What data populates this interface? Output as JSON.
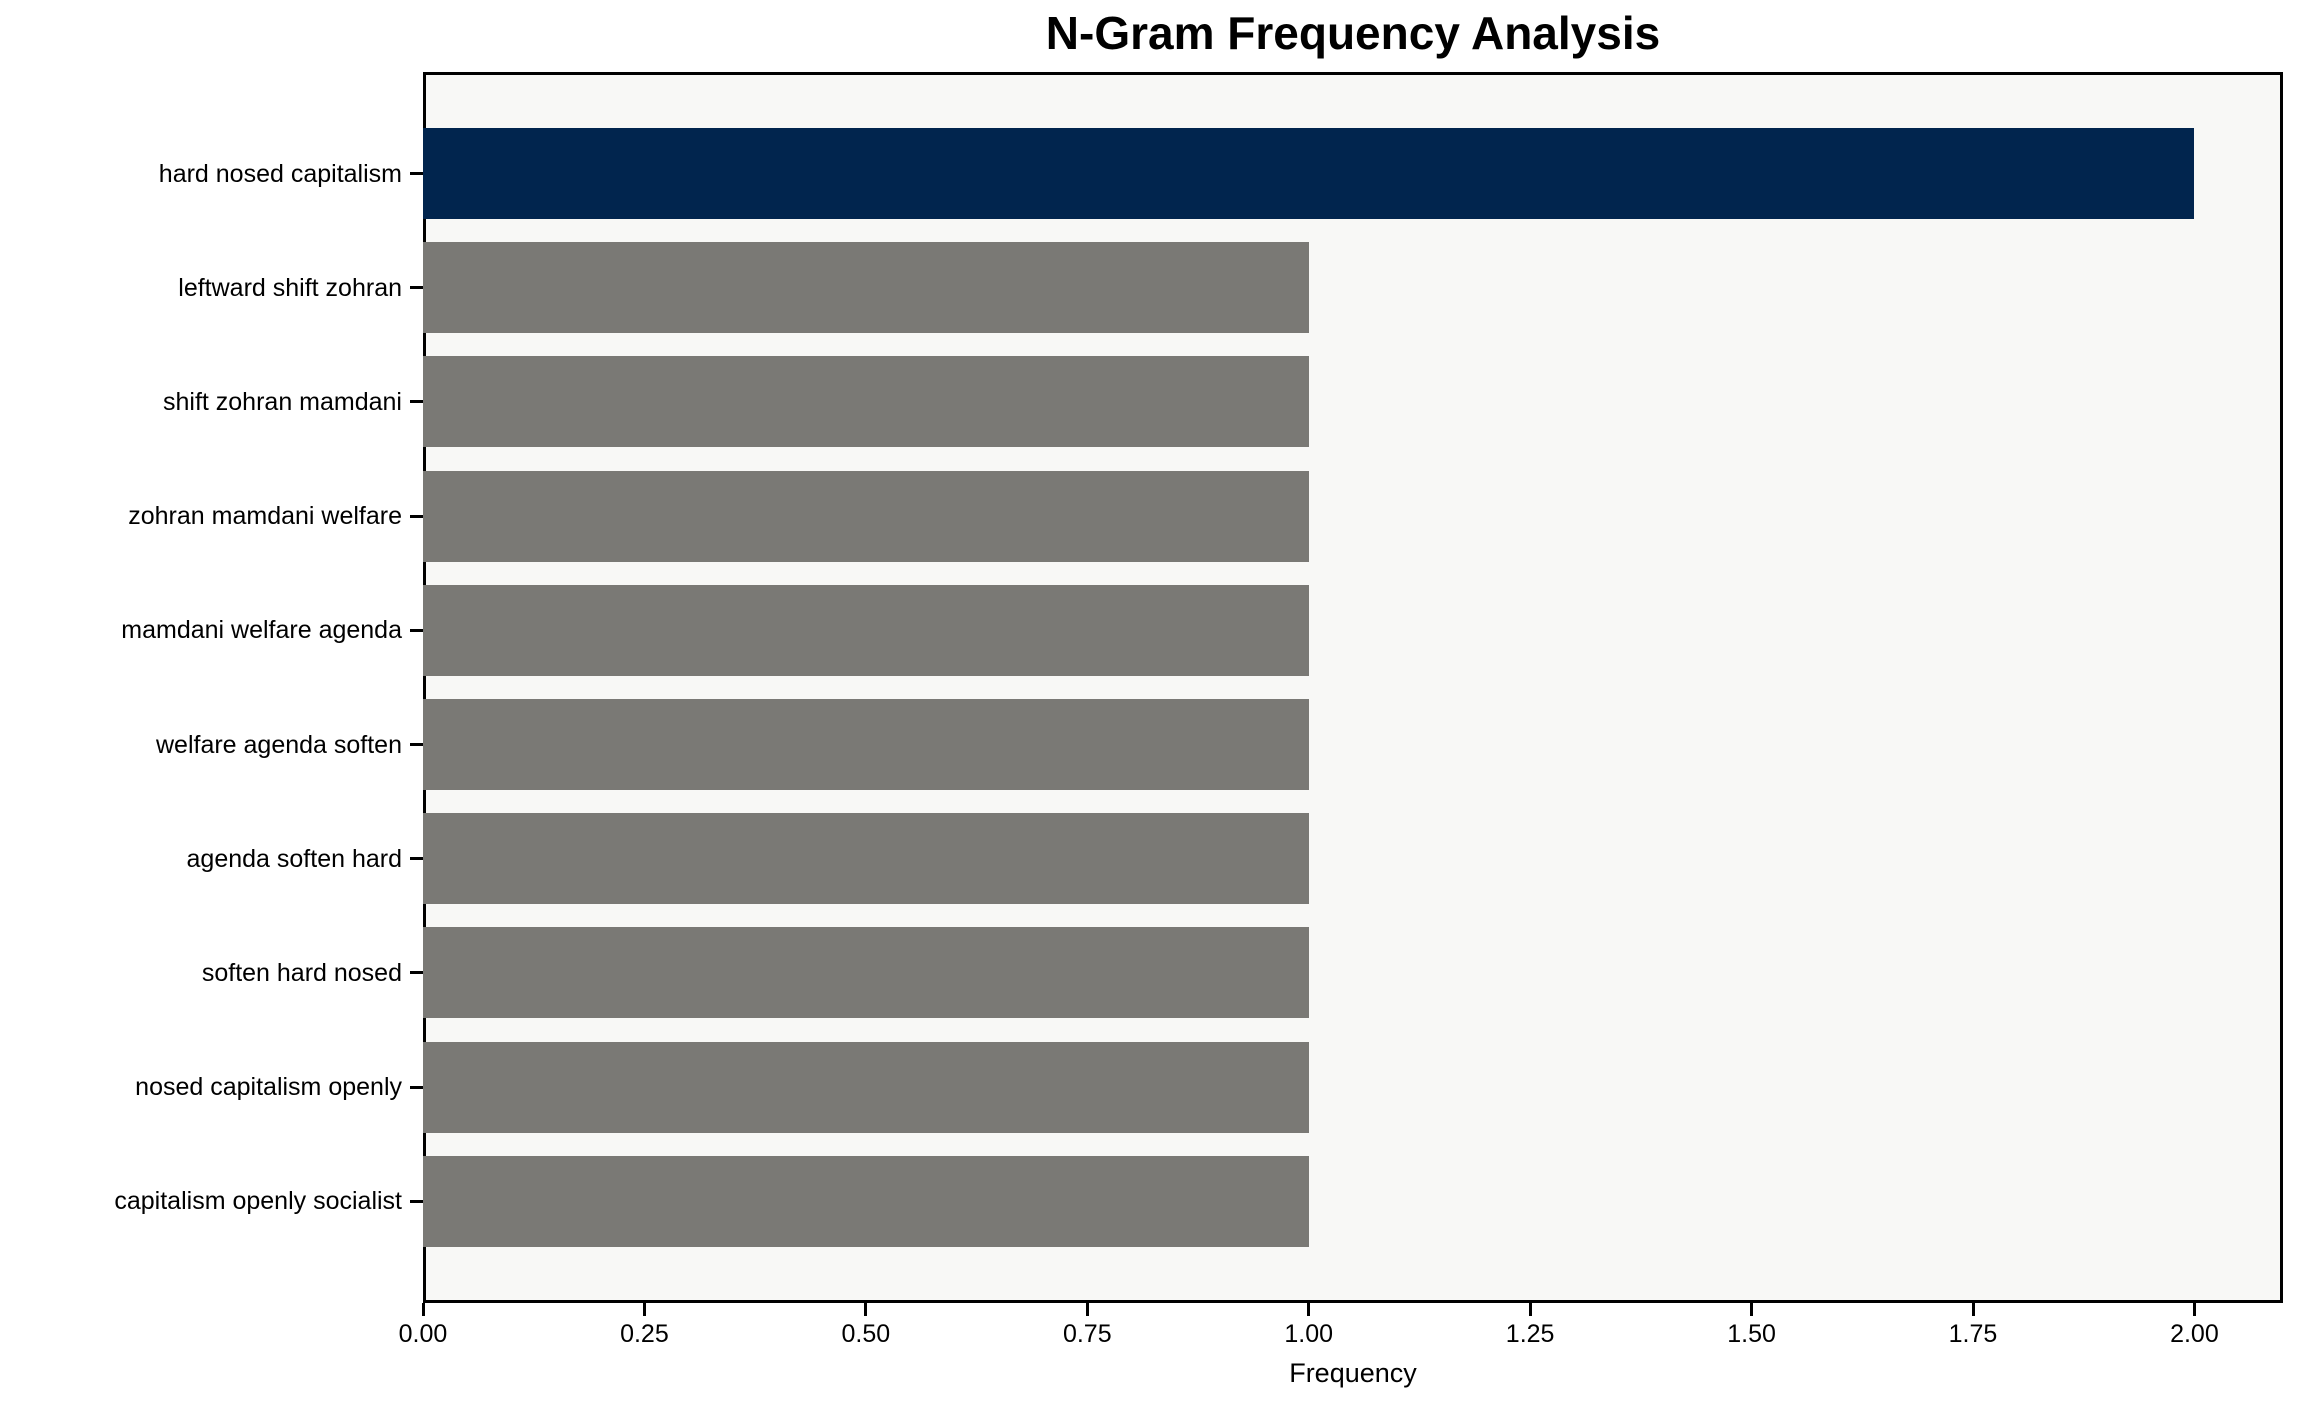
{
  "chart_data": {
    "type": "bar",
    "orientation": "horizontal",
    "title": "N-Gram Frequency Analysis",
    "xlabel": "Frequency",
    "ylabel": "",
    "categories": [
      "hard nosed capitalism",
      "leftward shift zohran",
      "shift zohran mamdani",
      "zohran mamdani welfare",
      "mamdani welfare agenda",
      "welfare agenda soften",
      "agenda soften hard",
      "soften hard nosed",
      "nosed capitalism openly",
      "capitalism openly socialist"
    ],
    "values": [
      2,
      1,
      1,
      1,
      1,
      1,
      1,
      1,
      1,
      1
    ],
    "bar_colors": [
      "#01254e",
      "#7a7975",
      "#7a7975",
      "#7a7975",
      "#7a7975",
      "#7a7975",
      "#7a7975",
      "#7a7975",
      "#7a7975",
      "#7a7975"
    ],
    "highlight_color": "#01254e",
    "default_color": "#7a7975",
    "x_ticks": [
      0.0,
      0.25,
      0.5,
      0.75,
      1.0,
      1.25,
      1.5,
      1.75,
      2.0
    ],
    "x_tick_labels": [
      "0.00",
      "0.25",
      "0.50",
      "0.75",
      "1.00",
      "1.25",
      "1.50",
      "1.75",
      "2.00"
    ],
    "xlim": [
      0,
      2.1
    ],
    "grid": false,
    "legend": null,
    "plot_background": "#f8f8f6",
    "figure_background": "#ffffff"
  }
}
